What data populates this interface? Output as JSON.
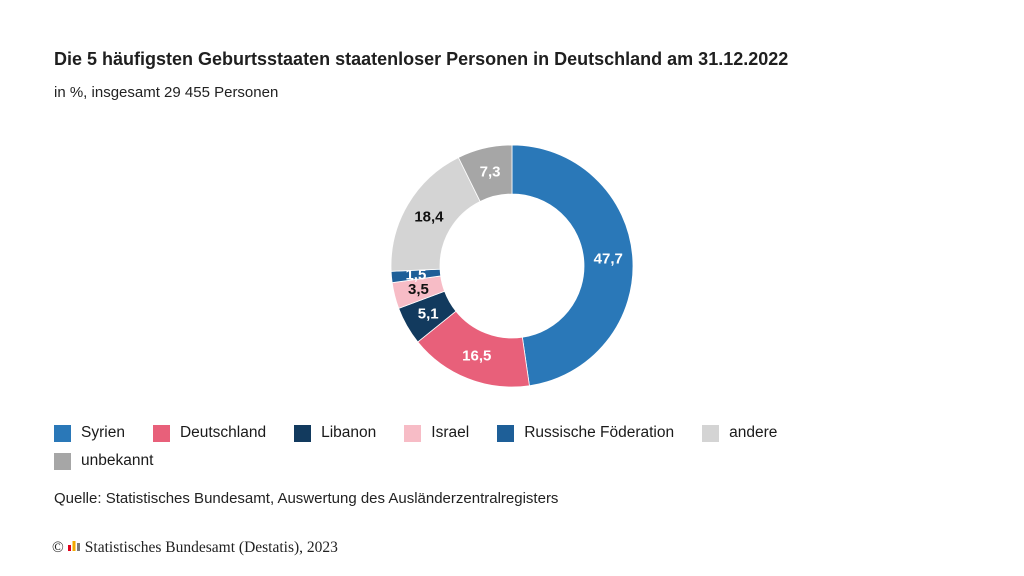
{
  "header": {
    "title": "Die 5 häufigsten Geburtsstaaten staatenloser Personen in Deutschland am 31.12.2022",
    "subtitle": "in %, insgesamt 29 455 Personen"
  },
  "chart_data": {
    "type": "pie",
    "variant": "donut",
    "title": "Die 5 häufigsten Geburtsstaaten staatenloser Personen in Deutschland am 31.12.2022",
    "subtitle": "in %, insgesamt 29 455 Personen",
    "slices": [
      {
        "label": "Syrien",
        "value": 47.7,
        "display": "47,7",
        "color": "#2a78b8",
        "text_color": "#ffffff"
      },
      {
        "label": "Deutschland",
        "value": 16.5,
        "display": "16,5",
        "color": "#e8607a",
        "text_color": "#ffffff"
      },
      {
        "label": "Libanon",
        "value": 5.1,
        "display": "5,1",
        "color": "#123a5e",
        "text_color": "#ffffff"
      },
      {
        "label": "Israel",
        "value": 3.5,
        "display": "3,5",
        "color": "#f7bcc6",
        "text_color": "#111111"
      },
      {
        "label": "Russische Föderation",
        "value": 1.5,
        "display": "1,5",
        "color": "#1e5f98",
        "text_color": "#ffffff"
      },
      {
        "label": "andere",
        "value": 18.4,
        "display": "18,4",
        "color": "#d4d4d4",
        "text_color": "#111111"
      },
      {
        "label": "unbekannt",
        "value": 7.3,
        "display": "7,3",
        "color": "#a6a6a6",
        "text_color": "#ffffff"
      }
    ],
    "legend_position": "bottom-left"
  },
  "legend": {
    "rows": [
      [
        "Syrien",
        "Deutschland",
        "Libanon",
        "Israel",
        "Russische Föderation",
        "andere"
      ],
      [
        "unbekannt"
      ]
    ]
  },
  "source": "Quelle: Statistisches Bundesamt, Auswertung des Ausländerzentralregisters",
  "footer": {
    "copyright_symbol": "©",
    "text": "Statistisches Bundesamt (Destatis), 2023"
  }
}
